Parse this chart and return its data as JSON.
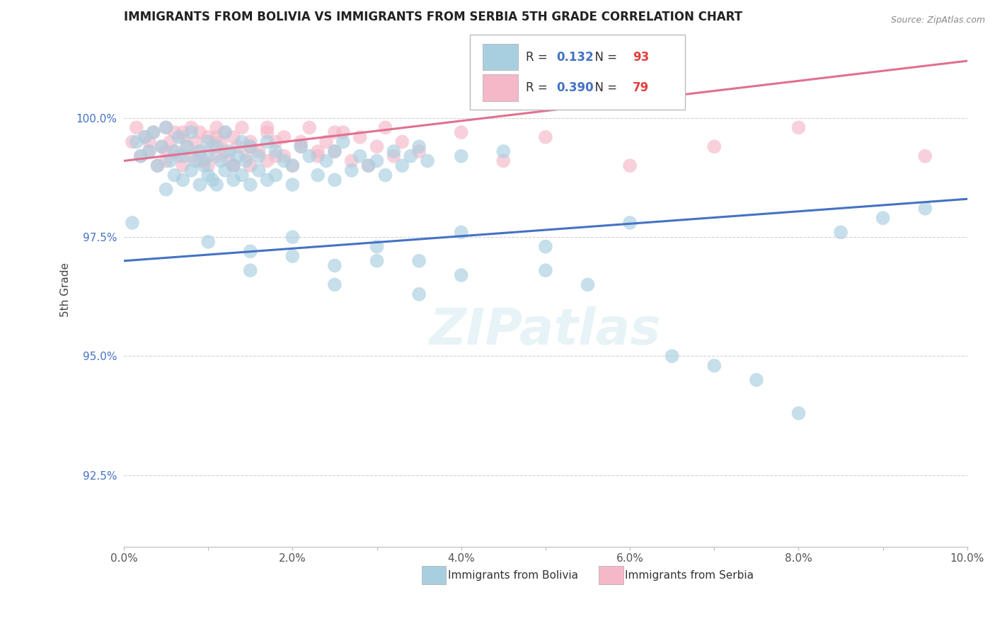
{
  "title": "IMMIGRANTS FROM BOLIVIA VS IMMIGRANTS FROM SERBIA 5TH GRADE CORRELATION CHART",
  "source": "Source: ZipAtlas.com",
  "ylabel": "5th Grade",
  "xlim": [
    0.0,
    10.0
  ],
  "ylim": [
    91.0,
    101.8
  ],
  "yticks": [
    92.5,
    95.0,
    97.5,
    100.0
  ],
  "ytick_labels": [
    "92.5%",
    "95.0%",
    "97.5%",
    "100.0%"
  ],
  "xticks": [
    0.0,
    1.0,
    2.0,
    3.0,
    4.0,
    5.0,
    6.0,
    7.0,
    8.0,
    9.0,
    10.0
  ],
  "xtick_labels": [
    "0.0%",
    "",
    "2.0%",
    "",
    "4.0%",
    "",
    "6.0%",
    "",
    "8.0%",
    "",
    "10.0%"
  ],
  "bolivia_color": "#a8cfe0",
  "serbia_color": "#f5b8c8",
  "regression_blue": "#4472C4",
  "regression_pink": "#e07090",
  "legend_R_bolivia": "0.132",
  "legend_N_bolivia": "93",
  "legend_R_serbia": "0.390",
  "legend_N_serbia": "79",
  "bolivia_reg_x0": 0.0,
  "bolivia_reg_y0": 97.0,
  "bolivia_reg_x1": 10.0,
  "bolivia_reg_y1": 98.3,
  "serbia_reg_x0": 0.0,
  "serbia_reg_y0": 99.1,
  "serbia_reg_x1": 10.0,
  "serbia_reg_y1": 101.2,
  "bolivia_x": [
    0.1,
    0.15,
    0.2,
    0.25,
    0.3,
    0.35,
    0.4,
    0.45,
    0.5,
    0.5,
    0.55,
    0.6,
    0.6,
    0.65,
    0.7,
    0.7,
    0.75,
    0.8,
    0.8,
    0.85,
    0.9,
    0.9,
    0.95,
    1.0,
    1.0,
    1.0,
    1.05,
    1.1,
    1.1,
    1.15,
    1.2,
    1.2,
    1.25,
    1.3,
    1.3,
    1.35,
    1.4,
    1.4,
    1.45,
    1.5,
    1.5,
    1.6,
    1.6,
    1.7,
    1.7,
    1.8,
    1.8,
    1.9,
    2.0,
    2.0,
    2.1,
    2.2,
    2.3,
    2.4,
    2.5,
    2.5,
    2.6,
    2.7,
    2.8,
    2.9,
    3.0,
    3.1,
    3.2,
    3.3,
    3.4,
    3.5,
    3.6,
    4.0,
    4.5,
    5.0,
    5.0,
    5.5,
    6.0,
    6.5,
    7.0,
    7.5,
    8.0,
    8.5,
    9.0,
    9.5,
    1.5,
    2.0,
    2.5,
    3.0,
    3.5,
    4.0,
    1.0,
    1.5,
    2.0,
    2.5,
    3.0,
    3.5,
    4.0
  ],
  "bolivia_y": [
    97.8,
    99.5,
    99.2,
    99.6,
    99.3,
    99.7,
    99.0,
    99.4,
    99.8,
    98.5,
    99.1,
    99.3,
    98.8,
    99.6,
    99.2,
    98.7,
    99.4,
    98.9,
    99.7,
    99.1,
    98.6,
    99.3,
    99.0,
    99.5,
    98.8,
    99.2,
    98.7,
    99.4,
    98.6,
    99.1,
    99.7,
    98.9,
    99.3,
    99.0,
    98.7,
    99.2,
    99.5,
    98.8,
    99.1,
    99.4,
    98.6,
    99.2,
    98.9,
    99.5,
    98.7,
    99.3,
    98.8,
    99.1,
    99.0,
    98.6,
    99.4,
    99.2,
    98.8,
    99.1,
    99.3,
    98.7,
    99.5,
    98.9,
    99.2,
    99.0,
    99.1,
    98.8,
    99.3,
    99.0,
    99.2,
    99.4,
    99.1,
    99.2,
    99.3,
    96.8,
    97.3,
    96.5,
    97.8,
    95.0,
    94.8,
    94.5,
    93.8,
    97.6,
    97.9,
    98.1,
    97.2,
    97.5,
    96.9,
    97.3,
    97.0,
    97.6,
    97.4,
    96.8,
    97.1,
    96.5,
    97.0,
    96.3,
    96.7
  ],
  "serbia_x": [
    0.1,
    0.15,
    0.2,
    0.25,
    0.3,
    0.35,
    0.4,
    0.45,
    0.5,
    0.5,
    0.55,
    0.6,
    0.6,
    0.65,
    0.7,
    0.7,
    0.75,
    0.8,
    0.8,
    0.85,
    0.9,
    0.9,
    0.95,
    1.0,
    1.0,
    1.05,
    1.1,
    1.1,
    1.15,
    1.2,
    1.2,
    1.25,
    1.3,
    1.3,
    1.35,
    1.4,
    1.45,
    1.5,
    1.5,
    1.6,
    1.7,
    1.7,
    1.8,
    1.8,
    1.9,
    2.0,
    2.1,
    2.2,
    2.3,
    2.4,
    2.5,
    2.6,
    2.7,
    2.8,
    2.9,
    3.0,
    3.1,
    3.2,
    3.3,
    3.5,
    4.0,
    4.5,
    5.0,
    6.0,
    7.0,
    8.0,
    9.5,
    0.3,
    0.5,
    0.7,
    0.9,
    1.1,
    1.3,
    1.5,
    1.7,
    1.9,
    2.1,
    2.3,
    2.5
  ],
  "serbia_y": [
    99.5,
    99.8,
    99.2,
    99.6,
    99.3,
    99.7,
    99.0,
    99.4,
    99.8,
    99.1,
    99.5,
    99.3,
    99.7,
    99.2,
    99.6,
    99.0,
    99.4,
    99.8,
    99.2,
    99.5,
    99.3,
    99.7,
    99.1,
    99.6,
    99.0,
    99.4,
    99.8,
    99.2,
    99.5,
    99.3,
    99.7,
    99.1,
    99.6,
    99.0,
    99.4,
    99.8,
    99.2,
    99.5,
    99.0,
    99.3,
    99.7,
    99.1,
    99.5,
    99.2,
    99.6,
    99.0,
    99.4,
    99.8,
    99.2,
    99.5,
    99.3,
    99.7,
    99.1,
    99.6,
    99.0,
    99.4,
    99.8,
    99.2,
    99.5,
    99.3,
    99.7,
    99.1,
    99.6,
    99.0,
    99.4,
    99.8,
    99.2,
    99.5,
    99.3,
    99.7,
    99.1,
    99.6,
    99.0,
    99.4,
    99.8,
    99.2,
    99.5,
    99.3,
    99.7
  ]
}
